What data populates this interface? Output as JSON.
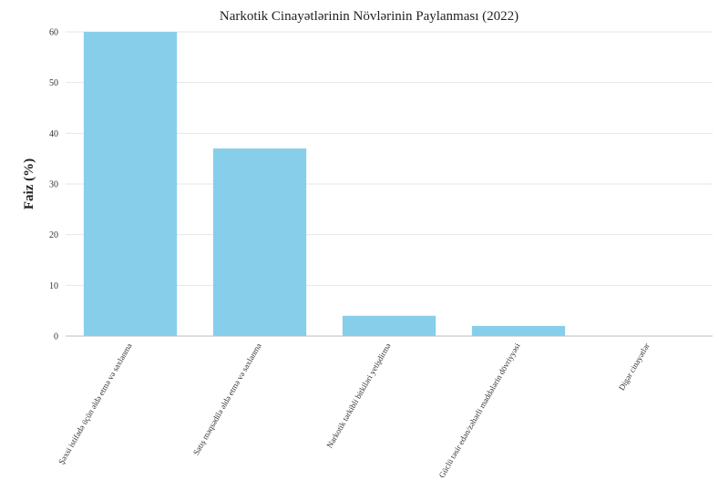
{
  "chart_data": {
    "type": "bar",
    "title": "Narkotik Cinayətlərinin Növlərinin Paylanması (2022)",
    "xlabel": "",
    "ylabel": "Faiz (%)",
    "ylim": [
      0,
      60
    ],
    "yticks": [
      0,
      10,
      20,
      30,
      40,
      50,
      60
    ],
    "grid": true,
    "bar_color": "#87CEEB",
    "categories": [
      "Şəxsi istifadə üçün əldə etmə və saxlanma",
      "Satış məqsədilə əldə etmə və saxlanma",
      "Narkotik tərkibli bitkiləri yetişdirmə",
      "Güclü təsir edən/zəhərli maddələrin dövriyyəsi",
      "Digər cinayətlər"
    ],
    "values": [
      60,
      37,
      4,
      2,
      0
    ]
  }
}
